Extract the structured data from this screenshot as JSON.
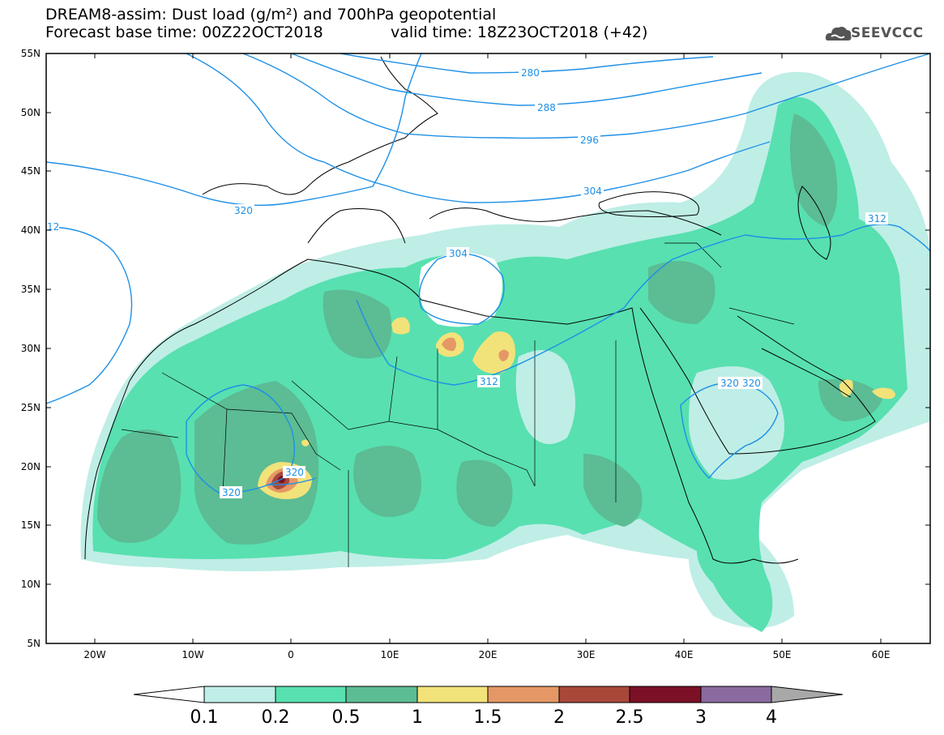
{
  "header": {
    "title_line1": "DREAM8-assim: Dust load (g/m²) and 700hPa geopotential",
    "title_base": "Forecast base time: 00Z22OCT2018",
    "title_valid": "valid time: 18Z23OCT2018 (+42)",
    "logo_text": "SEEVCCC"
  },
  "map": {
    "lat_labels": [
      "55N",
      "50N",
      "45N",
      "40N",
      "35N",
      "30N",
      "25N",
      "20N",
      "15N",
      "10N",
      "5N"
    ],
    "lon_labels": [
      "20W",
      "10W",
      "0",
      "10E",
      "20E",
      "30E",
      "40E",
      "50E",
      "60E"
    ],
    "contour_labels": [
      "280",
      "288",
      "296",
      "304",
      "304",
      "312",
      "312",
      "320",
      "320",
      "320",
      "320",
      "320",
      "12"
    ]
  },
  "legend": {
    "ticks": [
      "0.1",
      "0.2",
      "0.5",
      "1",
      "1.5",
      "2",
      "2.5",
      "3",
      "4"
    ],
    "colors": [
      "#bfeee6",
      "#58e0b0",
      "#5cbc94",
      "#f2e27a",
      "#e59866",
      "#a8483a",
      "#7b1026",
      "#8a6aa0"
    ],
    "min_color": "#ffffff",
    "max_color": "#a8a8a8"
  },
  "colors": {
    "contour": "#1e90e6",
    "dust_0_1": "#bfeee6",
    "dust_0_2": "#58e0b0",
    "dust_0_5": "#5cbc94",
    "dust_1": "#f2e27a",
    "dust_1_5": "#e59866",
    "dust_2": "#a8483a",
    "dust_2_5": "#7b1026"
  }
}
